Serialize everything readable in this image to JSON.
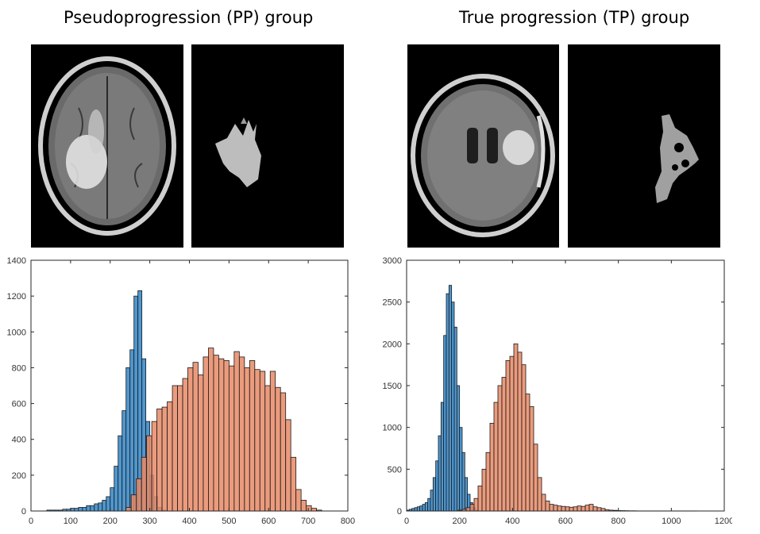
{
  "panels": {
    "left": {
      "title": "Pseudoprogression (PP) group"
    },
    "right": {
      "title": "True progression (TP) group"
    }
  },
  "colors": {
    "blue": "#4f97cf",
    "orange": "#e88a66",
    "edge": "#1a1a1a"
  },
  "chart_data": [
    {
      "type": "bar",
      "title": "",
      "xlabel": "",
      "ylabel": "",
      "xlim": [
        0,
        800
      ],
      "ylim": [
        0,
        1400
      ],
      "xticks": [
        "0",
        "100",
        "200",
        "300",
        "400",
        "500",
        "600",
        "700",
        "800"
      ],
      "yticks": [
        "0",
        "200",
        "400",
        "600",
        "800",
        "1000",
        "1200",
        "1400"
      ],
      "series": [
        {
          "color": "#4f97cf",
          "bin_width": 10,
          "bin_start": 40,
          "values": [
            5,
            5,
            5,
            5,
            10,
            10,
            15,
            15,
            20,
            20,
            30,
            30,
            40,
            45,
            60,
            80,
            130,
            250,
            420,
            560,
            800,
            900,
            1200,
            1230,
            850,
            500,
            200,
            80,
            20,
            5
          ]
        },
        {
          "color": "#e88a66",
          "bin_width": 13,
          "bin_start": 240,
          "values": [
            20,
            90,
            180,
            300,
            420,
            500,
            570,
            580,
            610,
            700,
            700,
            740,
            800,
            830,
            760,
            860,
            910,
            870,
            850,
            840,
            810,
            890,
            860,
            800,
            840,
            790,
            780,
            700,
            780,
            690,
            660,
            510,
            300,
            120,
            60,
            30,
            15,
            5
          ]
        }
      ]
    },
    {
      "type": "bar",
      "title": "",
      "xlabel": "",
      "ylabel": "",
      "xlim": [
        0,
        1200
      ],
      "ylim": [
        0,
        3000
      ],
      "xticks": [
        "0",
        "200",
        "400",
        "600",
        "800",
        "1000",
        "1200"
      ],
      "yticks": [
        "0",
        "500",
        "1000",
        "1500",
        "2000",
        "2500",
        "3000"
      ],
      "series": [
        {
          "color": "#4f97cf",
          "bin_width": 10,
          "bin_start": 0,
          "values": [
            10,
            20,
            30,
            40,
            50,
            60,
            80,
            100,
            150,
            250,
            400,
            600,
            900,
            1300,
            2100,
            2600,
            2700,
            2500,
            2200,
            1500,
            1000,
            700,
            400,
            200,
            100,
            40,
            10
          ]
        },
        {
          "color": "#e88a66",
          "bin_width": 15,
          "bin_start": 195,
          "values": [
            10,
            20,
            40,
            80,
            150,
            300,
            500,
            700,
            1050,
            1300,
            1500,
            1600,
            1800,
            1850,
            2000,
            1900,
            1750,
            1400,
            1250,
            800,
            400,
            200,
            120,
            80,
            70,
            60,
            55,
            50,
            45,
            50,
            60,
            55,
            70,
            80,
            50,
            40,
            30,
            15,
            10,
            8,
            5,
            4,
            3,
            2,
            2,
            1,
            1,
            1,
            1,
            1,
            1,
            1,
            1,
            1,
            1,
            1,
            1,
            1,
            1,
            1
          ]
        }
      ]
    }
  ]
}
